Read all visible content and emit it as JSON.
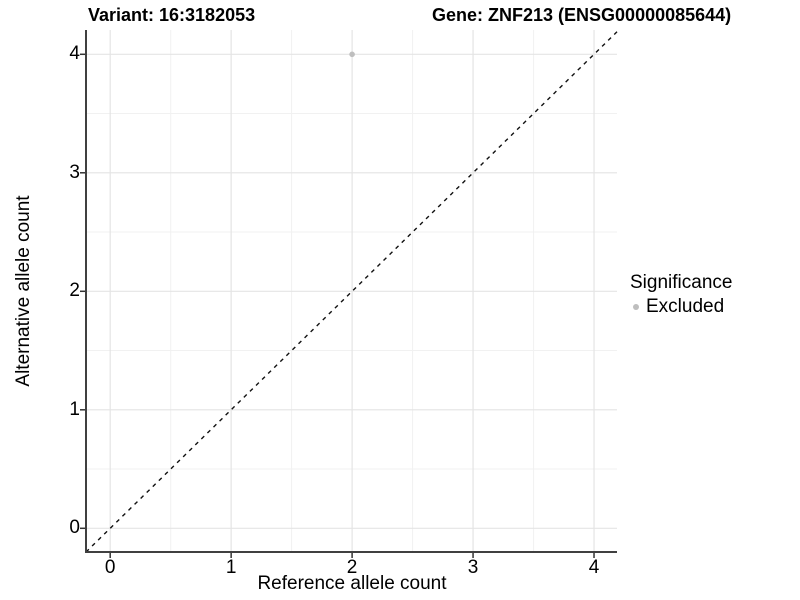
{
  "colors": {
    "point": "#bebebe",
    "grid_major": "#e4e4e4",
    "grid_minor": "#f1f1f1",
    "axis_line": "#404040",
    "tick_mark": "#333333",
    "identity_line": "#111111",
    "text": "#000000",
    "background": "#ffffff"
  },
  "chart_data": {
    "type": "scatter",
    "title_left": "Variant: 16:3182053",
    "title_right": "Gene: ZNF213 (ENSG00000085644)",
    "xlabel": "Reference allele count",
    "ylabel": "Alternative allele count",
    "xticks": [
      0,
      1,
      2,
      3,
      4
    ],
    "yticks": [
      0,
      1,
      2,
      3,
      4
    ],
    "xlim": [
      -0.2,
      4.19
    ],
    "ylim": [
      -0.2,
      4.205
    ],
    "grid": "major and minor (0.5 steps), light gray on white",
    "points": [
      {
        "x": 2,
        "y": 4,
        "series": "Excluded"
      }
    ],
    "reference_line": {
      "kind": "identity y=x",
      "style": "dashed",
      "color": "#111111"
    },
    "legend": {
      "title": "Significance",
      "position": "right",
      "entries": [
        {
          "label": "Excluded",
          "color": "#bebebe",
          "marker": "circle"
        }
      ]
    }
  }
}
